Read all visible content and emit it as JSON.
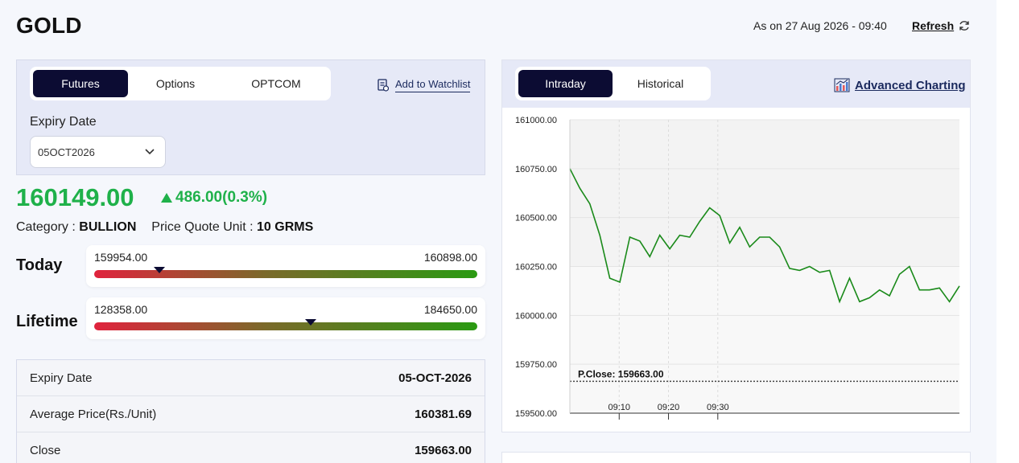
{
  "header": {
    "title": "GOLD",
    "as_on": "As on 27 Aug 2026 - 09:40",
    "refresh_label": "Refresh"
  },
  "left": {
    "tabs": [
      {
        "label": "Futures",
        "active": true
      },
      {
        "label": "Options",
        "active": false
      },
      {
        "label": "OPTCOM",
        "active": false
      }
    ],
    "watchlist_label": "Add to Watchlist",
    "expiry_label": "Expiry Date",
    "expiry_selected": "05OCT2026",
    "price": "160149.00",
    "change": "486.00(0.3%)",
    "category_label": "Category : ",
    "category_value": "BULLION",
    "quote_unit_label": "Price Quote Unit : ",
    "quote_unit_value": "10 GRMS",
    "today": {
      "label": "Today",
      "low": "159954.00",
      "high": "160898.00",
      "position": 0.17
    },
    "lifetime": {
      "label": "Lifetime",
      "low": "128358.00",
      "high": "184650.00",
      "position": 0.565
    },
    "details": [
      {
        "key": "Expiry Date",
        "value": "05-OCT-2026"
      },
      {
        "key": "Average Price(Rs./Unit)",
        "value": "160381.69"
      },
      {
        "key": "Close",
        "value": "159663.00"
      }
    ]
  },
  "right": {
    "tabs": [
      {
        "label": "Intraday",
        "active": true
      },
      {
        "label": "Historical",
        "active": false
      }
    ],
    "advanced_label": "Advanced Charting"
  },
  "colors": {
    "accent_dark": "#0c0c33",
    "up_green": "#1fb14a",
    "line_green": "#1a8a1a",
    "panel_bg": "#e6e9f7"
  },
  "chart_data": {
    "type": "line",
    "y_ticks": [
      "161000.00",
      "160750.00",
      "160500.00",
      "160250.00",
      "160000.00",
      "159750.00",
      "159500.00"
    ],
    "ylim": [
      159500,
      161000
    ],
    "x_ticks": [
      "09:10",
      "09:20",
      "09:30"
    ],
    "prev_close": 159663,
    "prev_close_label": "P.Close: 159663.00",
    "series": [
      {
        "values": [
          160750,
          160650,
          160570,
          160410,
          160190,
          160170,
          160400,
          160380,
          160300,
          160410,
          160340,
          160410,
          160400,
          160480,
          160550,
          160510,
          160370,
          160450,
          160350,
          160400,
          160400,
          160350,
          160240,
          160230,
          160250,
          160220,
          160230,
          160070,
          160190,
          160070,
          160090,
          160130,
          160100,
          160210,
          160250,
          160130,
          160130,
          160140,
          160070,
          160150
        ]
      }
    ]
  }
}
